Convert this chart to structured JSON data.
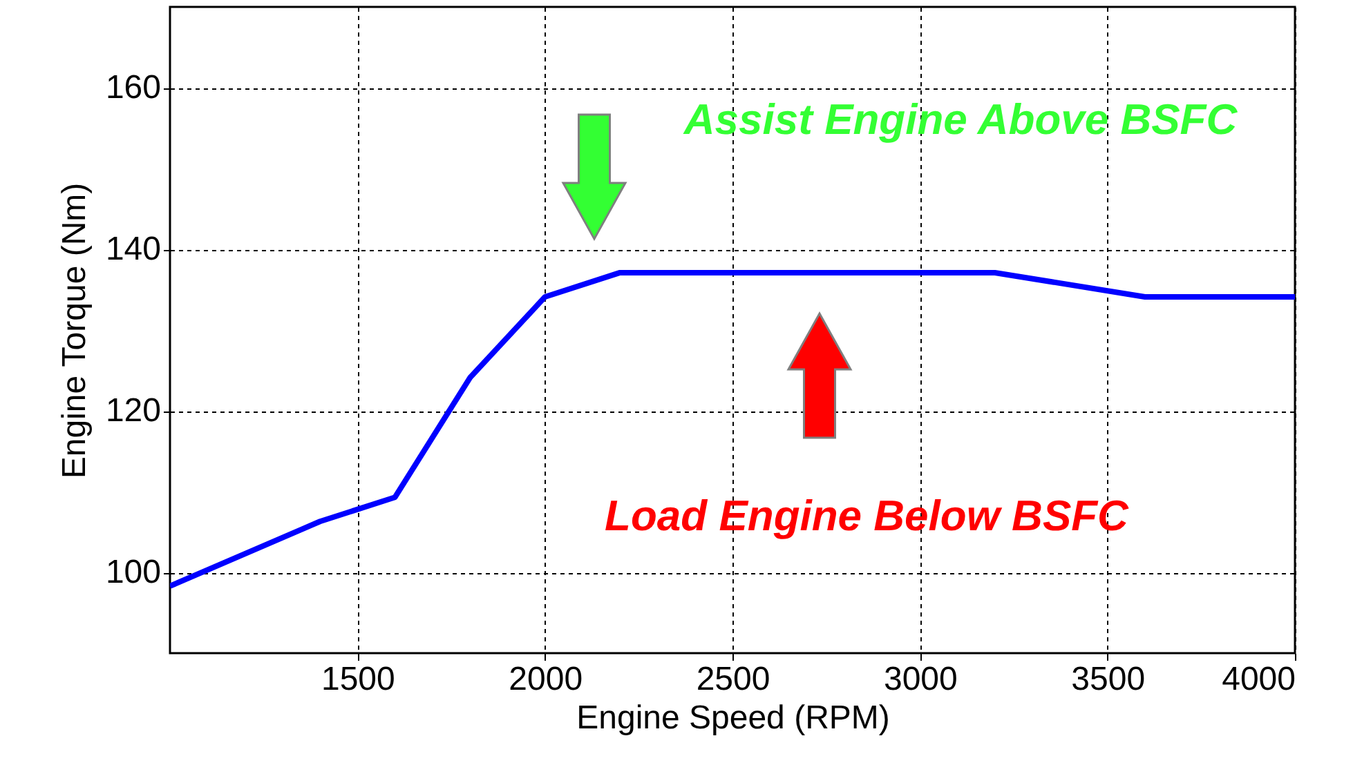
{
  "chart_data": {
    "type": "line",
    "xlabel": "Engine Speed (RPM)",
    "ylabel": "Engine Torque (Nm)",
    "x": [
      1000,
      1400,
      1600,
      1800,
      2000,
      2200,
      3200,
      3600,
      4000
    ],
    "series": [
      {
        "color": "#0000ff",
        "values": [
          98.3,
          106.3,
          109.3,
          124.1,
          134.1,
          137.1,
          137.1,
          134.1,
          134.1
        ]
      }
    ],
    "xlim": [
      1000,
      4000
    ],
    "xticks": [
      1500,
      2000,
      2500,
      3000,
      3500,
      4000
    ],
    "ylim": [
      90,
      170
    ],
    "yticks": [
      100,
      120,
      140,
      160
    ],
    "grid": true,
    "marker": "none",
    "line_style": "solid",
    "annotations": [
      "Assist Engine Above BSFC",
      "Load Engine Below BSFC"
    ]
  }
}
